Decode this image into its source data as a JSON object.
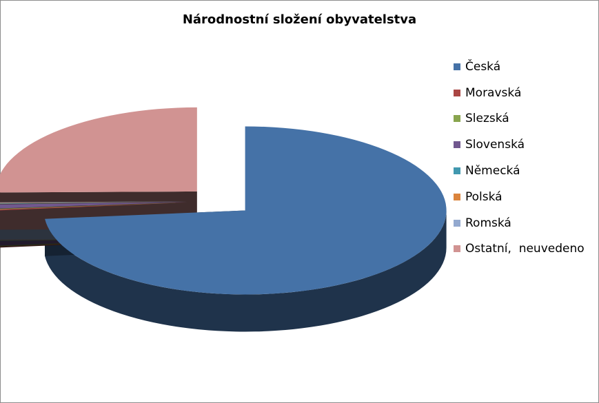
{
  "chart_data": {
    "type": "pie",
    "title": "Národnostní složení obyvatelstva",
    "categories": [
      "Česká",
      "Moravská",
      "Slezská",
      "Slovenská",
      "Německá",
      "Polská",
      "Romská",
      "Ostatní,  neuvedeno"
    ],
    "values": [
      73.4,
      0.2,
      0.1,
      0.8,
      0.1,
      0.1,
      0.1,
      25.2
    ],
    "colors": [
      "#4572a7",
      "#aa4643",
      "#89a54e",
      "#71588f",
      "#4198af",
      "#db843d",
      "#93a9cf",
      "#d19392"
    ],
    "legend_position": "right",
    "three_d": true,
    "exploded": true
  }
}
